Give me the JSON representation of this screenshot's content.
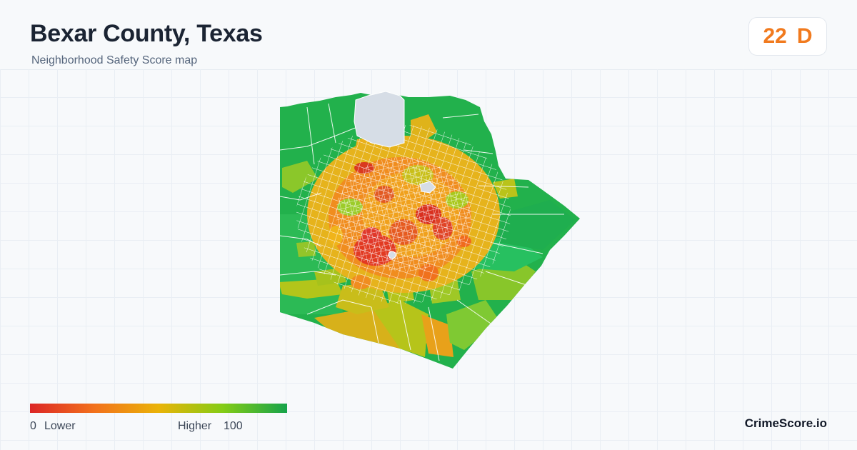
{
  "header": {
    "title": "Bexar County, Texas",
    "subtitle": "Neighborhood Safety Score map"
  },
  "score": {
    "value": "22",
    "grade": "D",
    "color": "#f17a1e"
  },
  "legend": {
    "min_value": "0",
    "min_label": "Lower",
    "max_label": "Higher",
    "max_value": "100",
    "colors": [
      "#dc2626",
      "#f2711c",
      "#eab308",
      "#84cc16",
      "#16a34a"
    ]
  },
  "footer": {
    "brand": "CrimeScore.io"
  },
  "map": {
    "region": "Bexar County, Texas",
    "no_data_color": "#d6dde6",
    "border_color": "#ffffff"
  }
}
